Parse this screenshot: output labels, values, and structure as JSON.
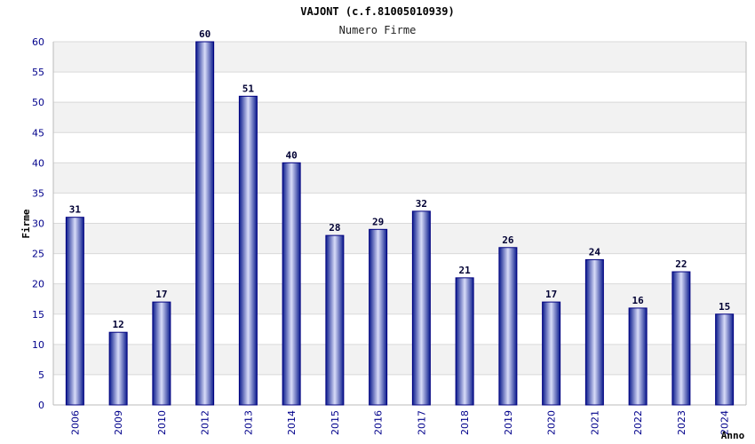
{
  "chart_data": {
    "type": "bar",
    "title": "VAJONT (c.f.81005010939)",
    "subtitle": "Numero Firme",
    "xlabel": "Anno",
    "ylabel": "Firme",
    "categories": [
      "2006",
      "2009",
      "2010",
      "2012",
      "2013",
      "2014",
      "2015",
      "2016",
      "2017",
      "2018",
      "2019",
      "2020",
      "2021",
      "2022",
      "2023",
      "2024"
    ],
    "values": [
      31,
      12,
      17,
      60,
      51,
      40,
      28,
      29,
      32,
      21,
      26,
      17,
      24,
      16,
      22,
      15
    ],
    "ylim": [
      0,
      60
    ],
    "yticks": [
      0,
      5,
      10,
      15,
      20,
      25,
      30,
      35,
      40,
      45,
      50,
      55,
      60
    ],
    "grid": true,
    "legend": "none",
    "colors": {
      "bar_edge": "#000080",
      "bar_dark": "#0a1a8c",
      "bar_light": "#d8dcf8",
      "tick_text": "#00008b",
      "band": "#f2f2f2",
      "grid": "#d9d9d9",
      "axis": "#bbbbbb"
    }
  }
}
